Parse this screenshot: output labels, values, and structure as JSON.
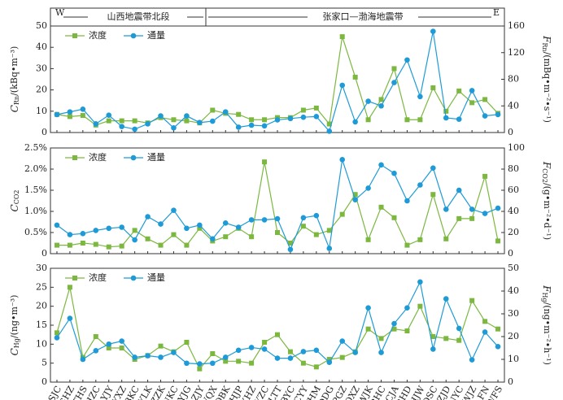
{
  "header": {
    "west": "W",
    "east": "E",
    "section_left": "山西地震带北段",
    "section_right": "张家口—渤海地震带"
  },
  "chart_data": [
    {
      "type": "line",
      "ylabel": {
        "symbol": "C",
        "sub": "Rn",
        "unit": "/(kBq•m⁻³)"
      },
      "y2label": {
        "symbol": "F",
        "sub": "Rn",
        "unit": "/(mBq•m⁻²•s⁻¹)"
      },
      "ylim": [
        0,
        50
      ],
      "yticks": [
        0,
        10,
        20,
        30,
        40,
        50
      ],
      "y2lim": [
        0,
        160
      ],
      "y2ticks": [
        0,
        40,
        80,
        120,
        160
      ],
      "legend": "upper left",
      "series": [
        {
          "name": "浓度",
          "color": "#7cb840",
          "marker": "square",
          "values": [
            8.5,
            7.5,
            8,
            3.5,
            5.5,
            5.5,
            5.5,
            4.5,
            7,
            6,
            5.5,
            4.5,
            10.5,
            9,
            8.5,
            6,
            6,
            7,
            7,
            10.5,
            11.5,
            4,
            45,
            26,
            6,
            15.5,
            30,
            6,
            6,
            21,
            10,
            19.5,
            14,
            15.5,
            9
          ]
        },
        {
          "name": "通量",
          "color": "#1e9bd7",
          "marker": "circle",
          "axis": "y2",
          "values": [
            27,
            31,
            35,
            13,
            26,
            9,
            5,
            13,
            25,
            7,
            25,
            15,
            17,
            31,
            8,
            11,
            10,
            19,
            21,
            23,
            24,
            2,
            71,
            16,
            47,
            40,
            75,
            109,
            54,
            152,
            22,
            20,
            63,
            25,
            27
          ]
        }
      ]
    },
    {
      "type": "line",
      "ylabel": {
        "symbol": "C",
        "sub": "CO2",
        "unit": ""
      },
      "y2label": {
        "symbol": "F",
        "sub": "CO2",
        "unit": "/(g•m⁻²•d⁻¹)"
      },
      "ylim": [
        0,
        2.5
      ],
      "yticks": [
        0,
        {
          "value": 0.5,
          "label": "0.5%"
        },
        {
          "value": 1.0,
          "label": "1.0%"
        },
        {
          "value": 1.5,
          "label": "1.5%"
        },
        {
          "value": 2.0,
          "label": "2.0%"
        },
        {
          "value": 2.5,
          "label": "2.5%"
        }
      ],
      "y2lim": [
        0,
        100
      ],
      "y2ticks": [
        0,
        20,
        40,
        60,
        80,
        100
      ],
      "legend": "upper left",
      "series": [
        {
          "name": "浓度",
          "color": "#7cb840",
          "marker": "square",
          "values": [
            0.2,
            0.2,
            0.25,
            0.22,
            0.16,
            0.18,
            0.55,
            0.35,
            0.2,
            0.45,
            0.2,
            0.6,
            0.3,
            0.4,
            0.6,
            0.4,
            2.17,
            0.5,
            0.25,
            0.65,
            0.45,
            0.55,
            0.93,
            1.4,
            0.33,
            1.1,
            0.85,
            0.2,
            0.33,
            1.4,
            0.35,
            0.83,
            0.83,
            1.83,
            0.3
          ]
        },
        {
          "name": "通量",
          "color": "#1e9bd7",
          "marker": "circle",
          "axis": "y2",
          "values": [
            27,
            18,
            19,
            22,
            24,
            25,
            13,
            35,
            28,
            41,
            24,
            27,
            14,
            29,
            25,
            32,
            32,
            33,
            4,
            34,
            36,
            5,
            89,
            51,
            62,
            84,
            76,
            50,
            65,
            81,
            42,
            60,
            42,
            38,
            43
          ]
        }
      ]
    },
    {
      "type": "line",
      "ylabel": {
        "symbol": "C",
        "sub": "Hg",
        "unit": "/(ng•m⁻³)"
      },
      "y2label": {
        "symbol": "F",
        "sub": "Hg",
        "unit": "/(ng•m⁻²•h⁻¹)"
      },
      "ylim": [
        0,
        30
      ],
      "yticks": [
        0,
        5,
        10,
        15,
        20,
        25,
        30
      ],
      "y2lim": [
        0,
        50
      ],
      "y2ticks": [
        0,
        10,
        20,
        30,
        40,
        50
      ],
      "legend": "upper left",
      "categories": [
        "SJC",
        "SHZ",
        "DTHS",
        "DHZC",
        "YJY",
        "YXZ",
        "BKC",
        "YLK",
        "ZZK",
        "NKC",
        "YJG",
        "ZJY",
        "WQX",
        "QBK",
        "HJP",
        "XHZ",
        "DYZC",
        "LTT",
        "BYC",
        "CYY",
        "YHM",
        "DDG",
        "PGZ",
        "QXZ",
        "WJK",
        "BHC",
        "CJA",
        "BHD",
        "HJW",
        "DSC",
        "ZJD",
        "NYC",
        "WJZ",
        "FN",
        "WFS"
      ],
      "series": [
        {
          "name": "浓度",
          "color": "#7cb840",
          "marker": "square",
          "values": [
            13,
            25,
            6.5,
            12,
            9,
            9,
            6,
            7,
            9.5,
            8,
            10.5,
            3.5,
            7.5,
            5.5,
            5.5,
            5,
            10.5,
            12.5,
            8,
            5,
            4,
            6,
            6.5,
            8,
            14,
            11.5,
            14,
            13.5,
            20,
            12,
            11.5,
            11,
            21.5,
            16,
            14
          ]
        },
        {
          "name": "通量",
          "color": "#1e9bd7",
          "marker": "circle",
          "axis": "y2",
          "values": [
            19.5,
            28,
            10,
            13.8,
            16.7,
            18,
            10.9,
            11.6,
            10.9,
            13,
            8.3,
            8,
            8.3,
            10.9,
            14,
            15.2,
            14.5,
            10.5,
            10.5,
            13.4,
            14,
            8.7,
            18,
            13,
            32.6,
            13,
            25.7,
            32.6,
            44,
            14.5,
            36.6,
            23.6,
            9.8,
            22,
            15.6
          ]
        }
      ]
    }
  ]
}
